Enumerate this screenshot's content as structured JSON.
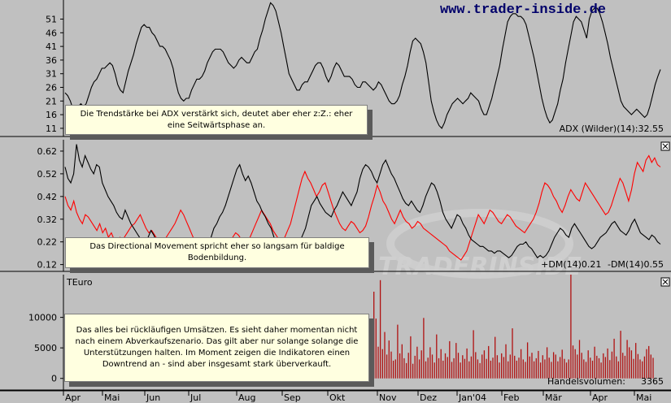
{
  "watermark_url": "www.trader-inside.de",
  "bg_logo_text": "TRADERINSIDE",
  "notes": {
    "adx": "Die Trendstärke bei ADX verstärkt sich, deutet aber eher z:Z.: eher eine Seitwärtsphase an.",
    "dm": "Das Directional Movement spricht eher so langsam für baldige Bodenbildung.",
    "volume": "Das alles bei rückläufigen Umsätzen. Es sieht daher momentan nicht nach einem Abverkaufszenario. Das gilt aber nur solange solange die Unterstützungen halten. Im Moment zeigen die Indikatoren einen Downtrend an - sind aber insgesamt stark überverkauft."
  },
  "colors": {
    "background": "#c0c0c0",
    "line_black": "#000000",
    "line_red": "#ff0000",
    "volume_bar": "#b01010",
    "note_bg": "#ffffe0"
  },
  "chart_data": [
    {
      "id": "adx",
      "type": "line",
      "legend_text": "ADX (Wilder)(14):32.55",
      "y_ticks": [
        11,
        16,
        21,
        26,
        31,
        36,
        41,
        46,
        51
      ],
      "ylim": [
        8,
        58
      ],
      "x_labels": [
        "Apr",
        "Mai",
        "Jun",
        "Jul",
        "Aug",
        "Sep",
        "Okt",
        "Nov",
        "Dez",
        "Jan'04",
        "Feb",
        "Mär",
        "Apr",
        "Mai"
      ],
      "series": [
        {
          "values": [
            24,
            23,
            21,
            18,
            17,
            19,
            20,
            19,
            20,
            23,
            26,
            28,
            29,
            31,
            33,
            33,
            34,
            35,
            34,
            31,
            27,
            25,
            24,
            28,
            32,
            35,
            38,
            42,
            45,
            48,
            49,
            48,
            48,
            46,
            45,
            43,
            41,
            41,
            40,
            38,
            36,
            33,
            28,
            24,
            22,
            21,
            22,
            22,
            25,
            27,
            29,
            29,
            30,
            32,
            35,
            37,
            39,
            40,
            40,
            40,
            39,
            37,
            35,
            34,
            33,
            34,
            36,
            37,
            36,
            35,
            35,
            37,
            39,
            40,
            44,
            47,
            51,
            54,
            57,
            56,
            54,
            50,
            46,
            41,
            36,
            31,
            29,
            27,
            25,
            25,
            27,
            28,
            28,
            30,
            32,
            34,
            35,
            35,
            33,
            30,
            28,
            30,
            33,
            35,
            34,
            32,
            30,
            30,
            30,
            29,
            27,
            26,
            26,
            28,
            28,
            27,
            26,
            25,
            26,
            28,
            27,
            25,
            23,
            21,
            20,
            20,
            21,
            23,
            27,
            30,
            34,
            39,
            43,
            44,
            43,
            42,
            39,
            35,
            28,
            21,
            17,
            14,
            12,
            11,
            13,
            16,
            18,
            20,
            21,
            22,
            21,
            20,
            21,
            22,
            24,
            23,
            22,
            21,
            18,
            16,
            16,
            19,
            22,
            26,
            30,
            34,
            40,
            45,
            50,
            52,
            53,
            53,
            52,
            52,
            51,
            49,
            45,
            41,
            37,
            32,
            27,
            22,
            18,
            15,
            13,
            14,
            17,
            20,
            25,
            29,
            35,
            40,
            45,
            50,
            52,
            51,
            50,
            47,
            44,
            51,
            54,
            55,
            55,
            53,
            50,
            46,
            42,
            37,
            33,
            29,
            25,
            21,
            19,
            18,
            17,
            16,
            17,
            18,
            17,
            16,
            15,
            16,
            19,
            23,
            27,
            30,
            32.55
          ]
        }
      ]
    },
    {
      "id": "dm",
      "type": "line",
      "legend_text": "+DM(14)0.21",
      "legend_text_red": "-DM(14)0.55",
      "y_ticks": [
        0.12,
        0.22,
        0.32,
        0.42,
        0.52,
        0.62
      ],
      "ylim": [
        0.09,
        0.67
      ],
      "series": [
        {
          "color": "black",
          "values": [
            0.55,
            0.5,
            0.48,
            0.52,
            0.65,
            0.58,
            0.55,
            0.6,
            0.57,
            0.54,
            0.52,
            0.56,
            0.55,
            0.48,
            0.45,
            0.42,
            0.4,
            0.38,
            0.35,
            0.33,
            0.32,
            0.36,
            0.33,
            0.3,
            0.28,
            0.26,
            0.24,
            0.22,
            0.2,
            0.24,
            0.27,
            0.25,
            0.22,
            0.2,
            0.19,
            0.18,
            0.2,
            0.22,
            0.21,
            0.19,
            0.18,
            0.17,
            0.16,
            0.15,
            0.17,
            0.19,
            0.18,
            0.17,
            0.16,
            0.17,
            0.2,
            0.24,
            0.28,
            0.3,
            0.33,
            0.35,
            0.38,
            0.42,
            0.46,
            0.5,
            0.54,
            0.56,
            0.52,
            0.49,
            0.51,
            0.48,
            0.44,
            0.4,
            0.38,
            0.35,
            0.33,
            0.3,
            0.28,
            0.24,
            0.22,
            0.2,
            0.18,
            0.17,
            0.19,
            0.21,
            0.2,
            0.19,
            0.22,
            0.25,
            0.28,
            0.33,
            0.38,
            0.4,
            0.42,
            0.39,
            0.37,
            0.35,
            0.34,
            0.33,
            0.36,
            0.38,
            0.41,
            0.44,
            0.42,
            0.4,
            0.38,
            0.41,
            0.44,
            0.5,
            0.54,
            0.56,
            0.55,
            0.53,
            0.5,
            0.48,
            0.52,
            0.56,
            0.58,
            0.55,
            0.52,
            0.5,
            0.47,
            0.44,
            0.41,
            0.39,
            0.38,
            0.4,
            0.38,
            0.36,
            0.35,
            0.38,
            0.42,
            0.45,
            0.48,
            0.47,
            0.44,
            0.4,
            0.35,
            0.32,
            0.3,
            0.28,
            0.31,
            0.34,
            0.33,
            0.3,
            0.28,
            0.25,
            0.23,
            0.22,
            0.21,
            0.2,
            0.2,
            0.19,
            0.18,
            0.18,
            0.17,
            0.18,
            0.18,
            0.17,
            0.16,
            0.15,
            0.16,
            0.18,
            0.2,
            0.21,
            0.21,
            0.22,
            0.2,
            0.19,
            0.17,
            0.15,
            0.16,
            0.15,
            0.16,
            0.18,
            0.21,
            0.24,
            0.26,
            0.28,
            0.27,
            0.25,
            0.24,
            0.28,
            0.3,
            0.28,
            0.26,
            0.24,
            0.22,
            0.2,
            0.19,
            0.2,
            0.22,
            0.24,
            0.25,
            0.26,
            0.28,
            0.3,
            0.31,
            0.29,
            0.27,
            0.26,
            0.25,
            0.27,
            0.3,
            0.32,
            0.29,
            0.26,
            0.25,
            0.24,
            0.23,
            0.25,
            0.24,
            0.22,
            0.21
          ]
        },
        {
          "color": "red",
          "values": [
            0.42,
            0.38,
            0.36,
            0.4,
            0.35,
            0.32,
            0.3,
            0.34,
            0.33,
            0.31,
            0.29,
            0.27,
            0.3,
            0.26,
            0.28,
            0.24,
            0.26,
            0.23,
            0.22,
            0.24,
            0.23,
            0.25,
            0.27,
            0.29,
            0.3,
            0.32,
            0.34,
            0.31,
            0.28,
            0.26,
            0.27,
            0.25,
            0.23,
            0.21,
            0.22,
            0.24,
            0.26,
            0.28,
            0.3,
            0.33,
            0.36,
            0.34,
            0.31,
            0.28,
            0.25,
            0.22,
            0.2,
            0.18,
            0.19,
            0.21,
            0.23,
            0.22,
            0.2,
            0.19,
            0.17,
            0.18,
            0.2,
            0.22,
            0.24,
            0.26,
            0.25,
            0.23,
            0.21,
            0.22,
            0.24,
            0.27,
            0.3,
            0.33,
            0.36,
            0.34,
            0.32,
            0.3,
            0.27,
            0.25,
            0.23,
            0.22,
            0.24,
            0.27,
            0.3,
            0.35,
            0.4,
            0.45,
            0.5,
            0.53,
            0.5,
            0.48,
            0.45,
            0.42,
            0.44,
            0.47,
            0.48,
            0.44,
            0.4,
            0.36,
            0.33,
            0.3,
            0.28,
            0.27,
            0.29,
            0.31,
            0.3,
            0.28,
            0.26,
            0.27,
            0.29,
            0.33,
            0.38,
            0.42,
            0.47,
            0.44,
            0.4,
            0.38,
            0.35,
            0.32,
            0.3,
            0.33,
            0.36,
            0.33,
            0.31,
            0.3,
            0.28,
            0.29,
            0.31,
            0.3,
            0.28,
            0.27,
            0.26,
            0.25,
            0.24,
            0.23,
            0.22,
            0.21,
            0.2,
            0.18,
            0.17,
            0.16,
            0.15,
            0.14,
            0.16,
            0.18,
            0.22,
            0.26,
            0.3,
            0.34,
            0.32,
            0.3,
            0.33,
            0.36,
            0.35,
            0.33,
            0.31,
            0.3,
            0.32,
            0.34,
            0.33,
            0.31,
            0.29,
            0.28,
            0.27,
            0.26,
            0.28,
            0.3,
            0.32,
            0.35,
            0.39,
            0.44,
            0.48,
            0.47,
            0.45,
            0.42,
            0.4,
            0.37,
            0.35,
            0.38,
            0.42,
            0.45,
            0.43,
            0.41,
            0.4,
            0.44,
            0.48,
            0.46,
            0.44,
            0.42,
            0.4,
            0.38,
            0.36,
            0.34,
            0.35,
            0.38,
            0.42,
            0.46,
            0.5,
            0.48,
            0.44,
            0.4,
            0.45,
            0.52,
            0.57,
            0.55,
            0.53,
            0.58,
            0.6,
            0.57,
            0.59,
            0.56,
            0.55
          ]
        }
      ]
    },
    {
      "id": "volume",
      "type": "bar",
      "unit_label": "TEuro",
      "legend_text": "Handelsvolumen:",
      "legend_value": "3365",
      "y_ticks": [
        0,
        5000,
        10000
      ],
      "ylim": [
        -1900,
        17000
      ],
      "values": [
        3200,
        14200,
        9800,
        5200,
        16100,
        4800,
        7600,
        3900,
        6200,
        4400,
        2900,
        3100,
        8800,
        4100,
        5600,
        3300,
        2500,
        4200,
        6900,
        2400,
        3700,
        5200,
        3100,
        4600,
        9900,
        2800,
        3400,
        5100,
        3900,
        2600,
        7200,
        3300,
        4800,
        2900,
        4100,
        3500,
        6100,
        2700,
        3300,
        5800,
        4200,
        2600,
        3800,
        3200,
        4900,
        2800,
        3600,
        7900,
        4300,
        3100,
        2500,
        3900,
        4600,
        3200,
        5300,
        2900,
        3400,
        6800,
        3800,
        2600,
        4100,
        3500,
        5600,
        2800,
        3900,
        8200,
        3700,
        2900,
        3400,
        4800,
        3100,
        2700,
        5900,
        3600,
        4200,
        2800,
        3300,
        4500,
        2600,
        3800,
        3100,
        5100,
        3400,
        2700,
        4300,
        3900,
        2800,
        3500,
        4700,
        3200,
        2600,
        3100,
        17000,
        5400,
        4800,
        3900,
        6300,
        4200,
        3100,
        2700,
        4600,
        3400,
        2900,
        5200,
        3700,
        3300,
        2600,
        4100,
        3500,
        4900,
        3000,
        4400,
        6500,
        3600,
        2800,
        7800,
        4200,
        3700,
        6300,
        5100,
        4600,
        3200,
        5800,
        4000,
        3100,
        2800,
        3600,
        4800,
        5300,
        3900,
        3365
      ]
    }
  ]
}
